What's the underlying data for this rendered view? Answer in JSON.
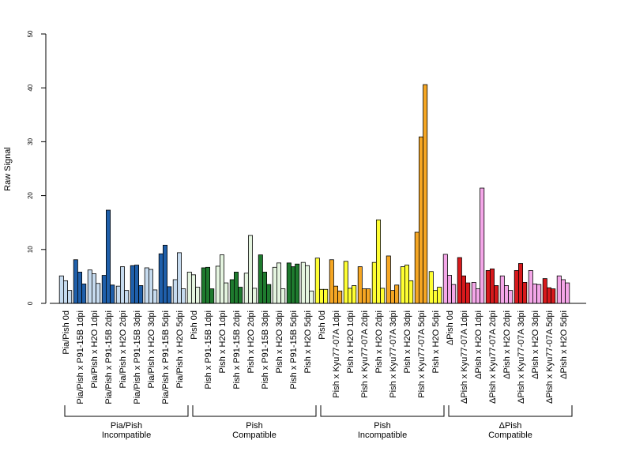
{
  "chart_data": {
    "type": "bar",
    "ylabel": "Raw Signal",
    "ylim": [
      0,
      50
    ],
    "yticks": [
      0,
      10,
      20,
      30,
      40,
      50
    ],
    "grid": false,
    "bars_per_category": 3,
    "categories": [
      {
        "label": "Pia/Pish 0d",
        "values": [
          5.1,
          4.2,
          2.4
        ],
        "color": "#c6dbef"
      },
      {
        "label": "Pia/Pish x P91-15B 1dpi",
        "values": [
          8.1,
          5.8,
          3.6
        ],
        "color": "#1f5faa"
      },
      {
        "label": "Pia/Pish x H2O 1dpi",
        "values": [
          6.2,
          5.5,
          3.7
        ],
        "color": "#c6dbef"
      },
      {
        "label": "Pia/Pish x P91-15B 2dpi",
        "values": [
          5.2,
          17.3,
          3.4
        ],
        "color": "#1f5faa"
      },
      {
        "label": "Pia/Pish x H2O 2dpi",
        "values": [
          3.2,
          6.8,
          2.4
        ],
        "color": "#c6dbef"
      },
      {
        "label": "Pia/Pish x P91-15B 3dpi",
        "values": [
          7.0,
          7.1,
          3.3
        ],
        "color": "#1f5faa"
      },
      {
        "label": "Pia/Pish x H2O 3dpi",
        "values": [
          6.6,
          6.3,
          2.5
        ],
        "color": "#c6dbef"
      },
      {
        "label": "Pia/Pish x P91-15B 5dpi",
        "values": [
          9.2,
          10.8,
          3.1
        ],
        "color": "#1f5faa"
      },
      {
        "label": "Pia/Pish x H2O 5dpi",
        "values": [
          4.4,
          9.4,
          2.7
        ],
        "color": "#c6dbef"
      },
      {
        "label": "Pish 0d",
        "values": [
          5.8,
          5.3,
          3.0
        ],
        "color": "#e5f5e0"
      },
      {
        "label": "Pish x P91-15B 1dpi",
        "values": [
          6.6,
          6.7,
          2.7
        ],
        "color": "#1e7a2e"
      },
      {
        "label": "Pish x H2O 1dpi",
        "values": [
          6.9,
          9.0,
          3.8
        ],
        "color": "#e5f5e0"
      },
      {
        "label": "Pish x P91-15B 2dpi",
        "values": [
          4.4,
          5.8,
          3.0
        ],
        "color": "#1e7a2e"
      },
      {
        "label": "Pish x H2O 2dpi",
        "values": [
          5.6,
          12.6,
          2.8
        ],
        "color": "#e5f5e0"
      },
      {
        "label": "Pish x P91-15B 3dpi",
        "values": [
          9.0,
          5.8,
          3.5
        ],
        "color": "#1e7a2e"
      },
      {
        "label": "Pish x H2O 3dpi",
        "values": [
          6.7,
          7.5,
          2.7
        ],
        "color": "#e5f5e0"
      },
      {
        "label": "Pish x P91-15B 5dpi",
        "values": [
          7.5,
          6.8,
          7.3
        ],
        "color": "#1e7a2e"
      },
      {
        "label": "Pish x H2O 5dpi",
        "values": [
          7.6,
          7.0,
          2.3
        ],
        "color": "#e5f5e0"
      },
      {
        "label": "Pish 0d",
        "values": [
          8.4,
          2.6,
          2.6
        ],
        "color": "#ffff33"
      },
      {
        "label": "Pish x Kyu77-07A 1dpi",
        "values": [
          8.1,
          3.2,
          2.3
        ],
        "color": "#f5a623"
      },
      {
        "label": "Pish x H2O 1dpi",
        "values": [
          7.8,
          2.8,
          3.3
        ],
        "color": "#ffff33"
      },
      {
        "label": "Pish x Kyu77-07A 2dpi",
        "values": [
          6.8,
          2.7,
          2.7
        ],
        "color": "#f5a623"
      },
      {
        "label": "Pish x H2O 2dpi",
        "values": [
          7.6,
          15.5,
          2.8
        ],
        "color": "#ffff33"
      },
      {
        "label": "Pish x Kyu77-07A 3dpi",
        "values": [
          8.8,
          2.4,
          3.4
        ],
        "color": "#f5a623"
      },
      {
        "label": "Pish x H2O 3dpi",
        "values": [
          6.8,
          7.1,
          4.2
        ],
        "color": "#ffff33"
      },
      {
        "label": "Pish x Kyu77-07A 5dpi",
        "values": [
          13.2,
          30.9,
          40.6
        ],
        "color": "#f5a623"
      },
      {
        "label": "Pish x H2O 5dpi",
        "values": [
          5.9,
          2.4,
          3.0
        ],
        "color": "#ffff33"
      },
      {
        "label": "ΔPish 0d",
        "values": [
          9.1,
          5.2,
          3.5
        ],
        "color": "#f4a6e8"
      },
      {
        "label": "ΔPish x Kyu77-07A 1dpi",
        "values": [
          8.5,
          5.1,
          3.8
        ],
        "color": "#d7191c"
      },
      {
        "label": "ΔPish x H2O 1dpi",
        "values": [
          3.9,
          2.7,
          21.4
        ],
        "color": "#f4a6e8"
      },
      {
        "label": "ΔPish x Kyu77-07A 2dpi",
        "values": [
          6.1,
          6.4,
          3.3
        ],
        "color": "#d7191c"
      },
      {
        "label": "ΔPish x H2O 2dpi",
        "values": [
          5.1,
          3.3,
          2.4
        ],
        "color": "#f4a6e8"
      },
      {
        "label": "ΔPish x Kyu77-07A 3dpi",
        "values": [
          6.1,
          7.4,
          3.9
        ],
        "color": "#d7191c"
      },
      {
        "label": "ΔPish x H2O 3dpi",
        "values": [
          6.1,
          3.6,
          3.5
        ],
        "color": "#f4a6e8"
      },
      {
        "label": "ΔPish x Kyu77-07A 5dpi",
        "values": [
          4.6,
          2.9,
          2.7
        ],
        "color": "#d7191c"
      },
      {
        "label": "ΔPish x H2O 5dpi",
        "values": [
          5.1,
          4.4,
          3.8
        ],
        "color": "#f4a6e8"
      }
    ],
    "groups": [
      {
        "line1": "Pia/Pish",
        "line2": "Incompatible",
        "start": 0,
        "end": 8
      },
      {
        "line1": "Pish",
        "line2": "Compatible",
        "start": 9,
        "end": 17
      },
      {
        "line1": "Pish",
        "line2": "Incompatible",
        "start": 18,
        "end": 26
      },
      {
        "line1": "ΔPish",
        "line2": "Compatible",
        "start": 27,
        "end": 35
      }
    ]
  }
}
